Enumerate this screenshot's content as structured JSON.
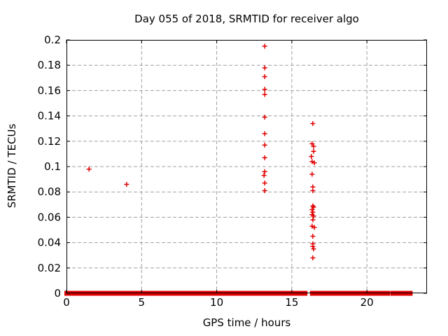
{
  "chart_data": {
    "type": "scatter",
    "title": "Day 055 of 2018, SRMTID for receiver algo",
    "xlabel": "GPS time / hours",
    "ylabel": "SRMTID / TECUs",
    "xlim": [
      0,
      24
    ],
    "ylim": [
      0,
      0.2
    ],
    "xticks": [
      0,
      5,
      10,
      15,
      20
    ],
    "xtick_labels": [
      "0",
      "5",
      "10",
      "15",
      "20"
    ],
    "yticks": [
      0,
      0.02,
      0.04,
      0.06,
      0.08,
      0.1,
      0.12,
      0.14,
      0.16,
      0.18,
      0.2
    ],
    "ytick_labels": [
      "0",
      "0.02",
      "0.04",
      "0.06",
      "0.08",
      "0.1",
      "0.12",
      "0.14",
      "0.16",
      "0.18",
      "0.2"
    ],
    "grid": true,
    "legend": false,
    "marker": "plus",
    "marker_color": "#e10000",
    "grid_color": "#a0a0a0",
    "frame_color": "#000000",
    "background_color": "#ffffff",
    "points": [
      [
        1.5,
        0.098
      ],
      [
        4.0,
        0.086
      ],
      [
        13.2,
        0.195
      ],
      [
        13.2,
        0.178
      ],
      [
        13.2,
        0.171
      ],
      [
        13.2,
        0.161
      ],
      [
        13.2,
        0.157
      ],
      [
        13.2,
        0.139
      ],
      [
        13.2,
        0.126
      ],
      [
        13.2,
        0.117
      ],
      [
        13.2,
        0.107
      ],
      [
        13.2,
        0.096
      ],
      [
        13.15,
        0.093
      ],
      [
        13.2,
        0.087
      ],
      [
        13.2,
        0.081
      ],
      [
        16.4,
        0.134
      ],
      [
        16.35,
        0.118
      ],
      [
        16.45,
        0.116
      ],
      [
        16.45,
        0.112
      ],
      [
        16.3,
        0.108
      ],
      [
        16.35,
        0.104
      ],
      [
        16.5,
        0.103
      ],
      [
        16.35,
        0.094
      ],
      [
        16.4,
        0.084
      ],
      [
        16.4,
        0.081
      ],
      [
        16.4,
        0.069
      ],
      [
        16.45,
        0.068
      ],
      [
        16.35,
        0.066
      ],
      [
        16.4,
        0.064
      ],
      [
        16.35,
        0.062
      ],
      [
        16.45,
        0.061
      ],
      [
        16.4,
        0.058
      ],
      [
        16.35,
        0.053
      ],
      [
        16.5,
        0.052
      ],
      [
        16.4,
        0.045
      ],
      [
        16.4,
        0.039
      ],
      [
        16.4,
        0.037
      ],
      [
        16.45,
        0.035
      ],
      [
        16.4,
        0.028
      ]
    ],
    "zero_line_segments": [
      [
        0.0,
        1.9
      ],
      [
        2.1,
        3.7
      ],
      [
        3.9,
        4.45
      ],
      [
        4.6,
        5.3
      ],
      [
        5.55,
        7.9
      ],
      [
        8.1,
        8.2
      ],
      [
        8.3,
        8.85
      ],
      [
        9.05,
        12.5
      ],
      [
        12.7,
        13.75
      ],
      [
        14.0,
        15.9
      ],
      [
        16.35,
        19.4
      ],
      [
        19.6,
        21.4
      ],
      [
        21.7,
        21.95
      ],
      [
        22.05,
        22.9
      ]
    ]
  }
}
